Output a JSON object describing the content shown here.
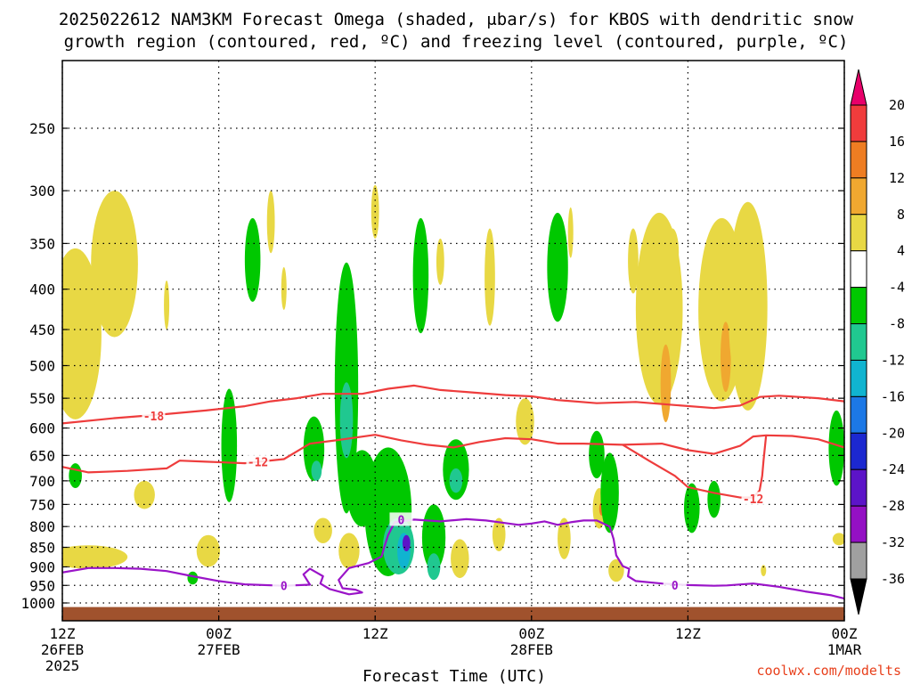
{
  "title_line1": "2025022612 NAM3KM Forecast Omega (shaded, μbar/s) for KBOS with dendritic snow",
  "title_line2": "growth region (contoured, red, ºC) and freezing level (contoured, purple, ºC)",
  "credit": "coolwx.com/modelts",
  "chart_data": {
    "type": "heatmap",
    "title": "2025022612 NAM3KM Forecast Omega (shaded, μbar/s) for KBOS with dendritic snow growth region (contoured, red, ºC) and freezing level (contoured, purple, ºC)",
    "xlabel": "Forecast Time (UTC)",
    "ylabel": "",
    "x_ticks": [
      {
        "hour": 0,
        "lines": [
          "12Z",
          "26FEB",
          "2025"
        ]
      },
      {
        "hour": 12,
        "lines": [
          "00Z",
          "27FEB"
        ]
      },
      {
        "hour": 24,
        "lines": [
          "12Z"
        ]
      },
      {
        "hour": 36,
        "lines": [
          "00Z",
          "28FEB"
        ]
      },
      {
        "hour": 48,
        "lines": [
          "12Z"
        ]
      },
      {
        "hour": 60,
        "lines": [
          "00Z",
          "1MAR"
        ]
      }
    ],
    "xlim": [
      0,
      60
    ],
    "y_ticks": [
      250,
      300,
      350,
      400,
      450,
      500,
      550,
      600,
      650,
      700,
      750,
      800,
      850,
      900,
      950,
      1000
    ],
    "ylim": [
      1025,
      200
    ],
    "y_scale": "pressure (hPa), decreasing upward",
    "grid": true,
    "colorbar": {
      "labels": [
        "20",
        "16",
        "12",
        "8",
        "4",
        "-4",
        "-8",
        "-12",
        "-16",
        "-20",
        "-24",
        "-28",
        "-32",
        "-36"
      ],
      "colors": [
        "#e8006a",
        "#f03c3c",
        "#ee7d22",
        "#f0a830",
        "#e8d844",
        "#ffffff",
        "#00c800",
        "#20c890",
        "#10b4d0",
        "#1c78e6",
        "#1c28d0",
        "#5c14c8",
        "#9410c4",
        "#a0a0a0",
        "#000000"
      ]
    },
    "omega_features": [
      {
        "hour": 1.0,
        "p": 470,
        "dh": 2.0,
        "dp": 230,
        "color": "#e8d844"
      },
      {
        "hour": 4.0,
        "p": 380,
        "dh": 1.8,
        "dp": 160,
        "color": "#e8d844"
      },
      {
        "hour": 2.0,
        "p": 875,
        "dh": 3.0,
        "dp": 60,
        "color": "#e8d844"
      },
      {
        "hour": 1.0,
        "p": 690,
        "dh": 0.5,
        "dp": 50,
        "color": "#00c800"
      },
      {
        "hour": 6.3,
        "p": 730,
        "dh": 0.8,
        "dp": 60,
        "color": "#e8d844"
      },
      {
        "hour": 8.0,
        "p": 420,
        "dh": 0.2,
        "dp": 60,
        "color": "#e8d844"
      },
      {
        "hour": 10.0,
        "p": 930,
        "dh": 0.4,
        "dp": 35,
        "color": "#00c800"
      },
      {
        "hour": 11.2,
        "p": 860,
        "dh": 0.9,
        "dp": 80,
        "color": "#e8d844"
      },
      {
        "hour": 12.8,
        "p": 640,
        "dh": 0.6,
        "dp": 210,
        "color": "#00c800"
      },
      {
        "hour": 14.6,
        "p": 370,
        "dh": 0.6,
        "dp": 90,
        "color": "#00c800"
      },
      {
        "hour": 16.0,
        "p": 330,
        "dh": 0.3,
        "dp": 60,
        "color": "#e8d844"
      },
      {
        "hour": 17.0,
        "p": 400,
        "dh": 0.2,
        "dp": 50,
        "color": "#e8d844"
      },
      {
        "hour": 19.3,
        "p": 640,
        "dh": 0.8,
        "dp": 120,
        "color": "#00c800"
      },
      {
        "hour": 19.5,
        "p": 680,
        "dh": 0.4,
        "dp": 40,
        "color": "#20c890"
      },
      {
        "hour": 20.0,
        "p": 810,
        "dh": 0.7,
        "dp": 60,
        "color": "#e8d844"
      },
      {
        "hour": 21.8,
        "p": 570,
        "dh": 0.9,
        "dp": 400,
        "color": "#00c800"
      },
      {
        "hour": 21.8,
        "p": 590,
        "dh": 0.5,
        "dp": 130,
        "color": "#20c890"
      },
      {
        "hour": 22.0,
        "p": 860,
        "dh": 0.8,
        "dp": 90,
        "color": "#e8d844"
      },
      {
        "hour": 23.0,
        "p": 720,
        "dh": 1.2,
        "dp": 160,
        "color": "#00c800"
      },
      {
        "hour": 24.0,
        "p": 320,
        "dh": 0.3,
        "dp": 50,
        "color": "#e8d844"
      },
      {
        "hour": 25.0,
        "p": 780,
        "dh": 1.8,
        "dp": 290,
        "color": "#00c800"
      },
      {
        "hour": 25.8,
        "p": 850,
        "dh": 1.2,
        "dp": 140,
        "color": "#20c890"
      },
      {
        "hour": 26.2,
        "p": 860,
        "dh": 0.5,
        "dp": 90,
        "color": "#10b4d0"
      },
      {
        "hour": 26.4,
        "p": 840,
        "dh": 0.3,
        "dp": 40,
        "color": "#5c14c8"
      },
      {
        "hour": 27.5,
        "p": 390,
        "dh": 0.6,
        "dp": 130,
        "color": "#00c800"
      },
      {
        "hour": 28.5,
        "p": 830,
        "dh": 0.9,
        "dp": 160,
        "color": "#00c800"
      },
      {
        "hour": 28.5,
        "p": 900,
        "dh": 0.5,
        "dp": 70,
        "color": "#20c890"
      },
      {
        "hour": 29.0,
        "p": 370,
        "dh": 0.3,
        "dp": 50,
        "color": "#e8d844"
      },
      {
        "hour": 30.2,
        "p": 680,
        "dh": 1.0,
        "dp": 120,
        "color": "#00c800"
      },
      {
        "hour": 30.2,
        "p": 700,
        "dh": 0.5,
        "dp": 50,
        "color": "#20c890"
      },
      {
        "hour": 30.5,
        "p": 880,
        "dh": 0.7,
        "dp": 100,
        "color": "#e8d844"
      },
      {
        "hour": 32.8,
        "p": 390,
        "dh": 0.4,
        "dp": 110,
        "color": "#e8d844"
      },
      {
        "hour": 33.5,
        "p": 820,
        "dh": 0.5,
        "dp": 80,
        "color": "#e8d844"
      },
      {
        "hour": 35.5,
        "p": 590,
        "dh": 0.7,
        "dp": 80,
        "color": "#e8d844"
      },
      {
        "hour": 38.0,
        "p": 380,
        "dh": 0.8,
        "dp": 120,
        "color": "#00c800"
      },
      {
        "hour": 38.5,
        "p": 830,
        "dh": 0.5,
        "dp": 100,
        "color": "#e8d844"
      },
      {
        "hour": 39.0,
        "p": 340,
        "dh": 0.2,
        "dp": 50,
        "color": "#e8d844"
      },
      {
        "hour": 41.0,
        "p": 650,
        "dh": 0.6,
        "dp": 90,
        "color": "#00c800"
      },
      {
        "hour": 41.2,
        "p": 760,
        "dh": 0.5,
        "dp": 90,
        "color": "#e8d844"
      },
      {
        "hour": 41.4,
        "p": 760,
        "dh": 0.2,
        "dp": 30,
        "color": "#ee7d22"
      },
      {
        "hour": 42.0,
        "p": 730,
        "dh": 0.7,
        "dp": 170,
        "color": "#00c800"
      },
      {
        "hour": 42.5,
        "p": 910,
        "dh": 0.6,
        "dp": 60,
        "color": "#e8d844"
      },
      {
        "hour": 43.8,
        "p": 370,
        "dh": 0.4,
        "dp": 70,
        "color": "#e8d844"
      },
      {
        "hour": 45.0,
        "p": 500,
        "dh": 0.5,
        "dp": 60,
        "color": "#e8d844"
      },
      {
        "hour": 45.8,
        "p": 440,
        "dh": 1.8,
        "dp": 240,
        "color": "#e8d844"
      },
      {
        "hour": 46.3,
        "p": 530,
        "dh": 0.4,
        "dp": 120,
        "color": "#f0a830"
      },
      {
        "hour": 46.8,
        "p": 360,
        "dh": 0.5,
        "dp": 50,
        "color": "#e8d844"
      },
      {
        "hour": 48.3,
        "p": 760,
        "dh": 0.6,
        "dp": 110,
        "color": "#00c800"
      },
      {
        "hour": 50.0,
        "p": 740,
        "dh": 0.5,
        "dp": 80,
        "color": "#00c800"
      },
      {
        "hour": 50.6,
        "p": 440,
        "dh": 1.8,
        "dp": 230,
        "color": "#e8d844"
      },
      {
        "hour": 50.9,
        "p": 490,
        "dh": 0.4,
        "dp": 100,
        "color": "#f0a830"
      },
      {
        "hour": 52.6,
        "p": 440,
        "dh": 1.5,
        "dp": 260,
        "color": "#e8d844"
      },
      {
        "hour": 53.8,
        "p": 910,
        "dh": 0.2,
        "dp": 30,
        "color": "#e8d844"
      },
      {
        "hour": 59.4,
        "p": 640,
        "dh": 0.6,
        "dp": 140,
        "color": "#00c800"
      },
      {
        "hour": 59.6,
        "p": 830,
        "dh": 0.5,
        "dp": 30,
        "color": "#e8d844"
      }
    ],
    "dendritic_contours": [
      {
        "label": "-18",
        "color": "#ee3c3c",
        "points": [
          [
            0,
            592
          ],
          [
            4,
            583
          ],
          [
            8,
            576
          ],
          [
            11,
            570
          ],
          [
            14,
            563
          ],
          [
            16,
            555
          ],
          [
            18,
            550
          ],
          [
            20,
            543
          ],
          [
            23,
            543
          ],
          [
            25,
            535
          ],
          [
            27,
            530
          ],
          [
            29,
            537
          ],
          [
            31,
            540
          ],
          [
            34,
            545
          ],
          [
            36,
            547
          ],
          [
            38,
            553
          ],
          [
            41,
            558
          ],
          [
            44,
            556
          ],
          [
            47,
            561
          ],
          [
            50,
            566
          ],
          [
            52,
            562
          ],
          [
            53.5,
            548
          ],
          [
            55,
            546
          ],
          [
            58,
            550
          ],
          [
            60,
            555
          ]
        ],
        "label_at": [
          7.0,
          579
        ]
      },
      {
        "label": "-12",
        "color": "#ee3c3c",
        "points": [
          [
            0,
            672
          ],
          [
            2,
            683
          ],
          [
            5,
            680
          ],
          [
            8,
            675
          ],
          [
            9,
            660
          ],
          [
            11,
            662
          ],
          [
            14,
            665
          ],
          [
            17,
            657
          ],
          [
            19,
            628
          ],
          [
            21,
            622
          ],
          [
            24,
            612
          ],
          [
            26,
            622
          ],
          [
            28,
            630
          ],
          [
            30,
            635
          ],
          [
            32,
            625
          ],
          [
            34,
            618
          ],
          [
            36,
            620
          ],
          [
            38,
            628
          ],
          [
            40,
            628
          ],
          [
            43,
            630
          ],
          [
            46,
            628
          ],
          [
            48,
            640
          ],
          [
            50,
            647
          ],
          [
            52,
            632
          ],
          [
            53,
            615
          ],
          [
            54,
            613
          ],
          [
            56,
            614
          ],
          [
            58,
            620
          ],
          [
            60,
            635
          ]
        ],
        "label_at": [
          15.0,
          662
        ]
      },
      {
        "label": "-12",
        "color": "#ee3c3c",
        "points": [
          [
            43,
            630
          ],
          [
            45,
            660
          ],
          [
            47,
            690
          ],
          [
            48,
            713
          ],
          [
            50,
            725
          ],
          [
            52,
            735
          ],
          [
            53,
            735
          ],
          [
            53.5,
            720
          ],
          [
            53.7,
            690
          ],
          [
            53.8,
            660
          ],
          [
            54,
            613
          ]
        ],
        "label_at": [
          53.0,
          738
        ]
      }
    ],
    "freezing_contours": [
      {
        "label": "0",
        "color": "#9a14c8",
        "points": [
          [
            0,
            915
          ],
          [
            2,
            903
          ],
          [
            4,
            903
          ],
          [
            6,
            905
          ],
          [
            8,
            911
          ],
          [
            10,
            925
          ],
          [
            12,
            938
          ],
          [
            14,
            947
          ],
          [
            17,
            951
          ],
          [
            19,
            948
          ],
          [
            18.5,
            920
          ],
          [
            19,
            905
          ],
          [
            19.5,
            915
          ],
          [
            20,
            925
          ],
          [
            19.8,
            945
          ],
          [
            20.5,
            960
          ],
          [
            21,
            965
          ],
          [
            22,
            975
          ],
          [
            23,
            970
          ],
          [
            22.5,
            962
          ],
          [
            21.5,
            958
          ],
          [
            21.2,
            935
          ],
          [
            22,
            903
          ],
          [
            23.5,
            890
          ],
          [
            24.5,
            873
          ],
          [
            24.7,
            850
          ],
          [
            25,
            820
          ],
          [
            25.5,
            790
          ],
          [
            27,
            784
          ],
          [
            29,
            788
          ],
          [
            31,
            783
          ],
          [
            32.5,
            786
          ],
          [
            34,
            792
          ],
          [
            35,
            796
          ],
          [
            36,
            793
          ],
          [
            37,
            788
          ],
          [
            38,
            796
          ],
          [
            39,
            790
          ],
          [
            40,
            786
          ],
          [
            41,
            786
          ],
          [
            42,
            800
          ],
          [
            42.3,
            830
          ],
          [
            42.5,
            870
          ],
          [
            43,
            898
          ],
          [
            43.5,
            905
          ],
          [
            43.4,
            925
          ],
          [
            44,
            938
          ],
          [
            46,
            945
          ],
          [
            48,
            949
          ],
          [
            50,
            951
          ],
          [
            51,
            950
          ],
          [
            53,
            945
          ],
          [
            55,
            954
          ],
          [
            57,
            967
          ],
          [
            59,
            978
          ],
          [
            60,
            987
          ]
        ],
        "labels_at": [
          [
            17.0,
            950
          ],
          [
            26.0,
            784
          ],
          [
            47.0,
            949
          ]
        ]
      }
    ],
    "terrain_surface_p": 1012
  }
}
